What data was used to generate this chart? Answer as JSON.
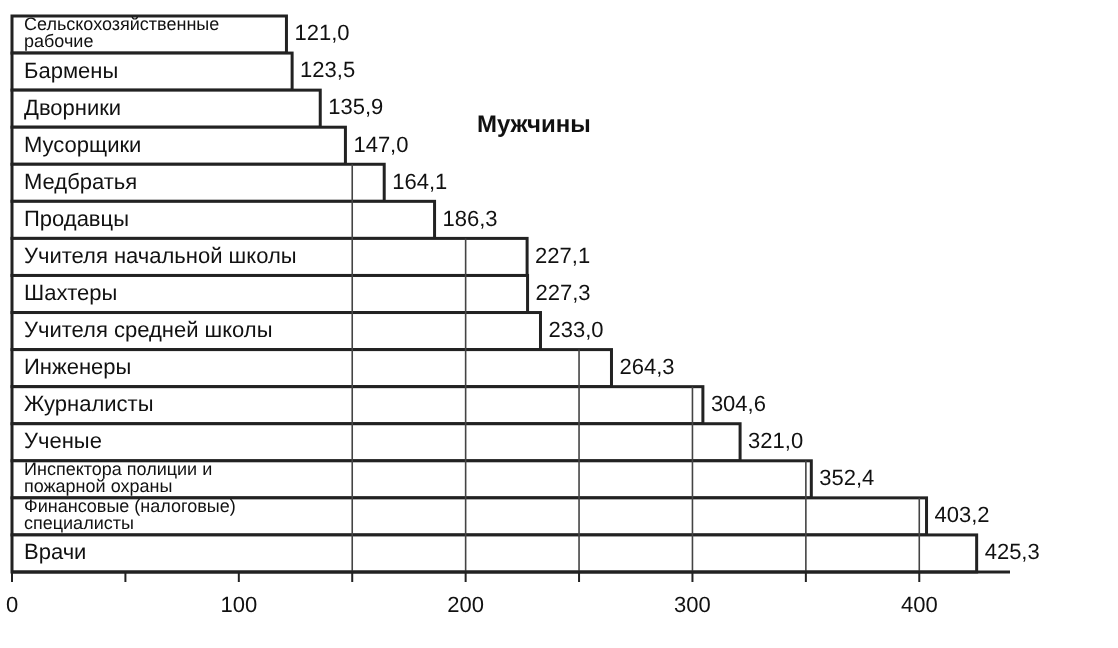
{
  "chart_data": {
    "type": "bar",
    "orientation": "horizontal",
    "categories": [
      "Сельскохозяйственные\nрабочие",
      "Бармены",
      "Дворники",
      "Мусорщики",
      "Медбратья",
      "Продавцы",
      "Учителя начальной школы",
      "Шахтеры",
      "Учителя средней школы",
      "Инженеры",
      "Журналисты",
      "Ученые",
      "Инспектора полиции и\nпожарной охраны",
      "Финансовые (налоговые)\nспециалисты",
      "Врачи"
    ],
    "values": [
      121.0,
      123.5,
      135.9,
      147.0,
      164.1,
      186.3,
      227.1,
      227.3,
      233.0,
      264.3,
      304.6,
      321.0,
      352.4,
      403.2,
      425.3
    ],
    "value_labels": [
      "121,0",
      "123,5",
      "135,9",
      "147,0",
      "164,1",
      "186,3",
      "227,1",
      "227,3",
      "233,0",
      "264,3",
      "304,6",
      "321,0",
      "352,4",
      "403,2",
      "425,3"
    ],
    "color": "#ffffff",
    "xlim": [
      0,
      440
    ],
    "xticks": [
      0,
      {
        "value": 50,
        "label": null
      },
      100,
      {
        "value": 150,
        "label": null
      },
      200,
      {
        "value": 250,
        "label": null
      },
      300,
      {
        "value": 350,
        "label": null
      },
      400
    ],
    "ref_lines": [
      {
        "axis": "x",
        "value": 150
      },
      {
        "axis": "x",
        "value": 200
      },
      {
        "axis": "x",
        "value": 250
      },
      {
        "axis": "x",
        "value": 300
      },
      {
        "axis": "x",
        "value": 350
      },
      {
        "axis": "x",
        "value": 400
      }
    ],
    "annotations": [
      "Мужчины"
    ]
  }
}
